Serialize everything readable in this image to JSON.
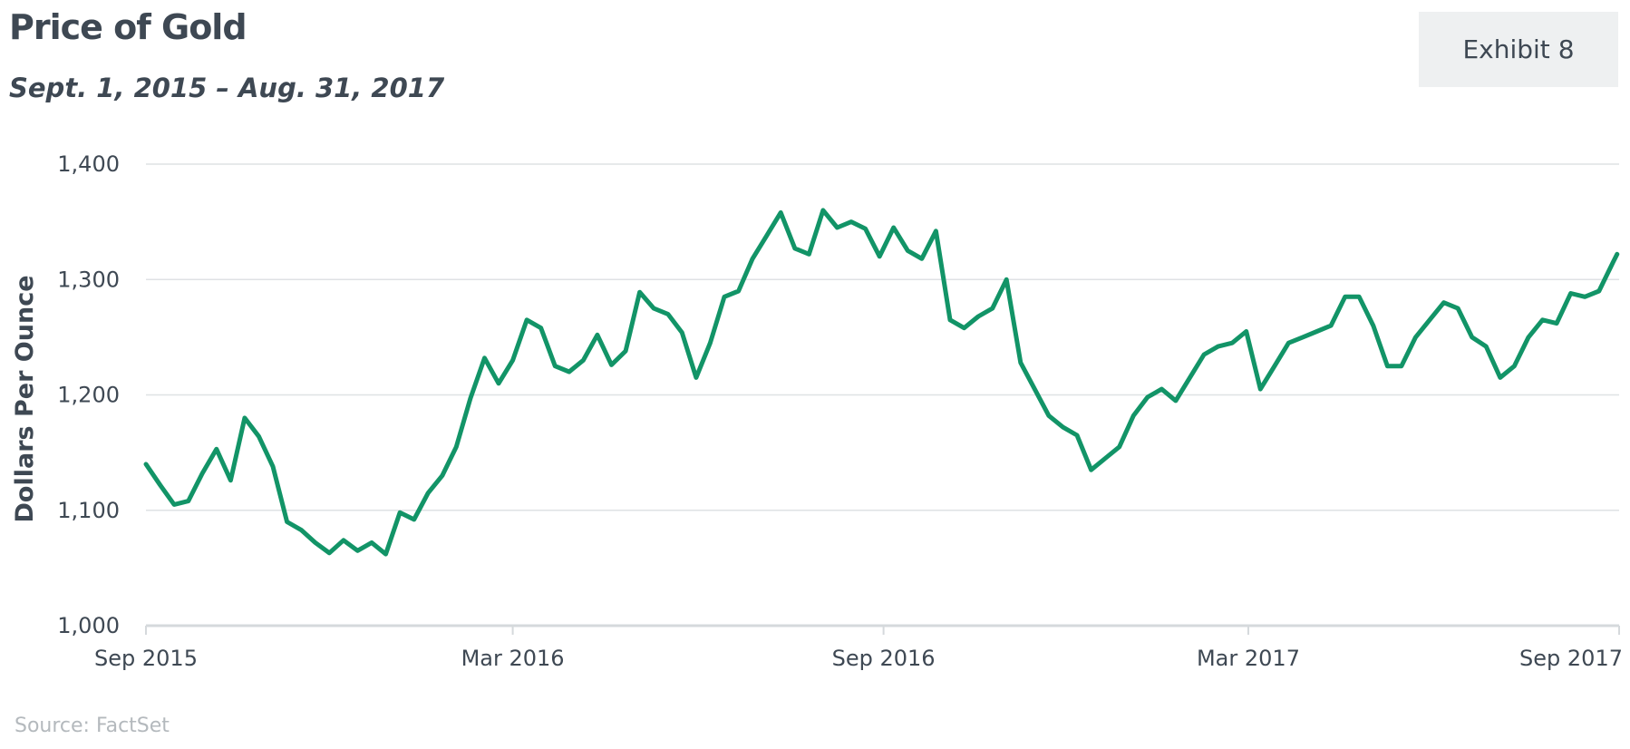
{
  "header": {
    "title": "Price of Gold",
    "subtitle": "Sept. 1, 2015 – Aug. 31, 2017",
    "exhibit_label": "Exhibit 8"
  },
  "footer": {
    "source": "Source: FactSet"
  },
  "colors": {
    "line": "#129467",
    "grid": "#dfe2e4",
    "axis": "#d5d9dc",
    "text": "#3e4853",
    "badge_bg": "#eef0f1"
  },
  "chart_data": {
    "type": "line",
    "title": "Price of Gold",
    "subtitle": "Sept. 1, 2015 – Aug. 31, 2017",
    "ylabel": "Dollars Per Ounce",
    "xlabel": "",
    "ylim": [
      1000,
      1400
    ],
    "yticks": [
      1000,
      1100,
      1200,
      1300,
      1400
    ],
    "ytick_labels": [
      "1,000",
      "1,100",
      "1,200",
      "1,300",
      "1,400"
    ],
    "xlim": [
      "2015-09-01",
      "2017-09-01"
    ],
    "xticks": [
      "2015-09-01",
      "2016-03-01",
      "2016-09-01",
      "2017-03-01",
      "2017-09-01"
    ],
    "xtick_labels": [
      "Sep 2015",
      "Mar 2016",
      "Sep 2016",
      "Mar 2017",
      "Sep 2017"
    ],
    "grid": "horizontal",
    "series": [
      {
        "x": [
          "2015-09-01",
          "2015-09-08",
          "2015-09-15",
          "2015-09-22",
          "2015-09-29",
          "2015-10-06",
          "2015-10-13",
          "2015-10-20",
          "2015-10-27",
          "2015-11-03",
          "2015-11-10",
          "2015-11-17",
          "2015-11-24",
          "2015-12-01",
          "2015-12-08",
          "2015-12-15",
          "2015-12-22",
          "2015-12-29",
          "2016-01-05",
          "2016-01-12",
          "2016-01-19",
          "2016-01-26",
          "2016-02-02",
          "2016-02-09",
          "2016-02-16",
          "2016-02-23",
          "2016-03-01",
          "2016-03-08",
          "2016-03-15",
          "2016-03-22",
          "2016-03-29",
          "2016-04-05",
          "2016-04-12",
          "2016-04-19",
          "2016-04-26",
          "2016-05-03",
          "2016-05-10",
          "2016-05-17",
          "2016-05-24",
          "2016-05-31",
          "2016-06-07",
          "2016-06-14",
          "2016-06-21",
          "2016-06-28",
          "2016-07-05",
          "2016-07-12",
          "2016-07-19",
          "2016-07-26",
          "2016-08-02",
          "2016-08-09",
          "2016-08-16",
          "2016-08-23",
          "2016-08-30",
          "2016-09-06",
          "2016-09-13",
          "2016-09-20",
          "2016-09-27",
          "2016-10-04",
          "2016-10-11",
          "2016-10-18",
          "2016-10-25",
          "2016-11-01",
          "2016-11-08",
          "2016-11-15",
          "2016-11-22",
          "2016-11-29",
          "2016-12-06",
          "2016-12-13",
          "2016-12-20",
          "2016-12-27",
          "2017-01-03",
          "2017-01-10",
          "2017-01-17",
          "2017-01-24",
          "2017-01-31",
          "2017-02-07",
          "2017-02-14",
          "2017-02-21",
          "2017-02-28",
          "2017-03-07",
          "2017-03-14",
          "2017-03-21",
          "2017-03-28",
          "2017-04-04",
          "2017-04-11",
          "2017-04-18",
          "2017-04-25",
          "2017-05-02",
          "2017-05-09",
          "2017-05-16",
          "2017-05-23",
          "2017-05-30",
          "2017-06-06",
          "2017-06-13",
          "2017-06-20",
          "2017-06-27",
          "2017-07-04",
          "2017-07-11",
          "2017-07-18",
          "2017-07-25",
          "2017-08-01",
          "2017-08-08",
          "2017-08-15",
          "2017-08-22",
          "2017-08-29",
          "2017-08-31"
        ],
        "values": [
          1140,
          1122,
          1105,
          1108,
          1132,
          1153,
          1126,
          1180,
          1164,
          1138,
          1090,
          1083,
          1072,
          1063,
          1074,
          1065,
          1072,
          1062,
          1098,
          1092,
          1115,
          1130,
          1155,
          1197,
          1232,
          1210,
          1230,
          1265,
          1258,
          1225,
          1220,
          1230,
          1252,
          1226,
          1238,
          1289,
          1275,
          1270,
          1254,
          1215,
          1245,
          1285,
          1290,
          1318,
          1338,
          1358,
          1327,
          1322,
          1360,
          1345,
          1350,
          1344,
          1320,
          1345,
          1325,
          1318,
          1342,
          1265,
          1258,
          1268,
          1275,
          1300,
          1228,
          1205,
          1182,
          1172,
          1165,
          1135,
          1145,
          1155,
          1182,
          1198,
          1205,
          1195,
          1215,
          1235,
          1242,
          1245,
          1255,
          1205,
          1225,
          1245,
          1250,
          1255,
          1260,
          1285,
          1285,
          1260,
          1225,
          1225,
          1250,
          1265,
          1280,
          1275,
          1250,
          1242,
          1215,
          1225,
          1250,
          1265,
          1262,
          1288,
          1285,
          1290,
          1315,
          1322
        ]
      }
    ]
  }
}
